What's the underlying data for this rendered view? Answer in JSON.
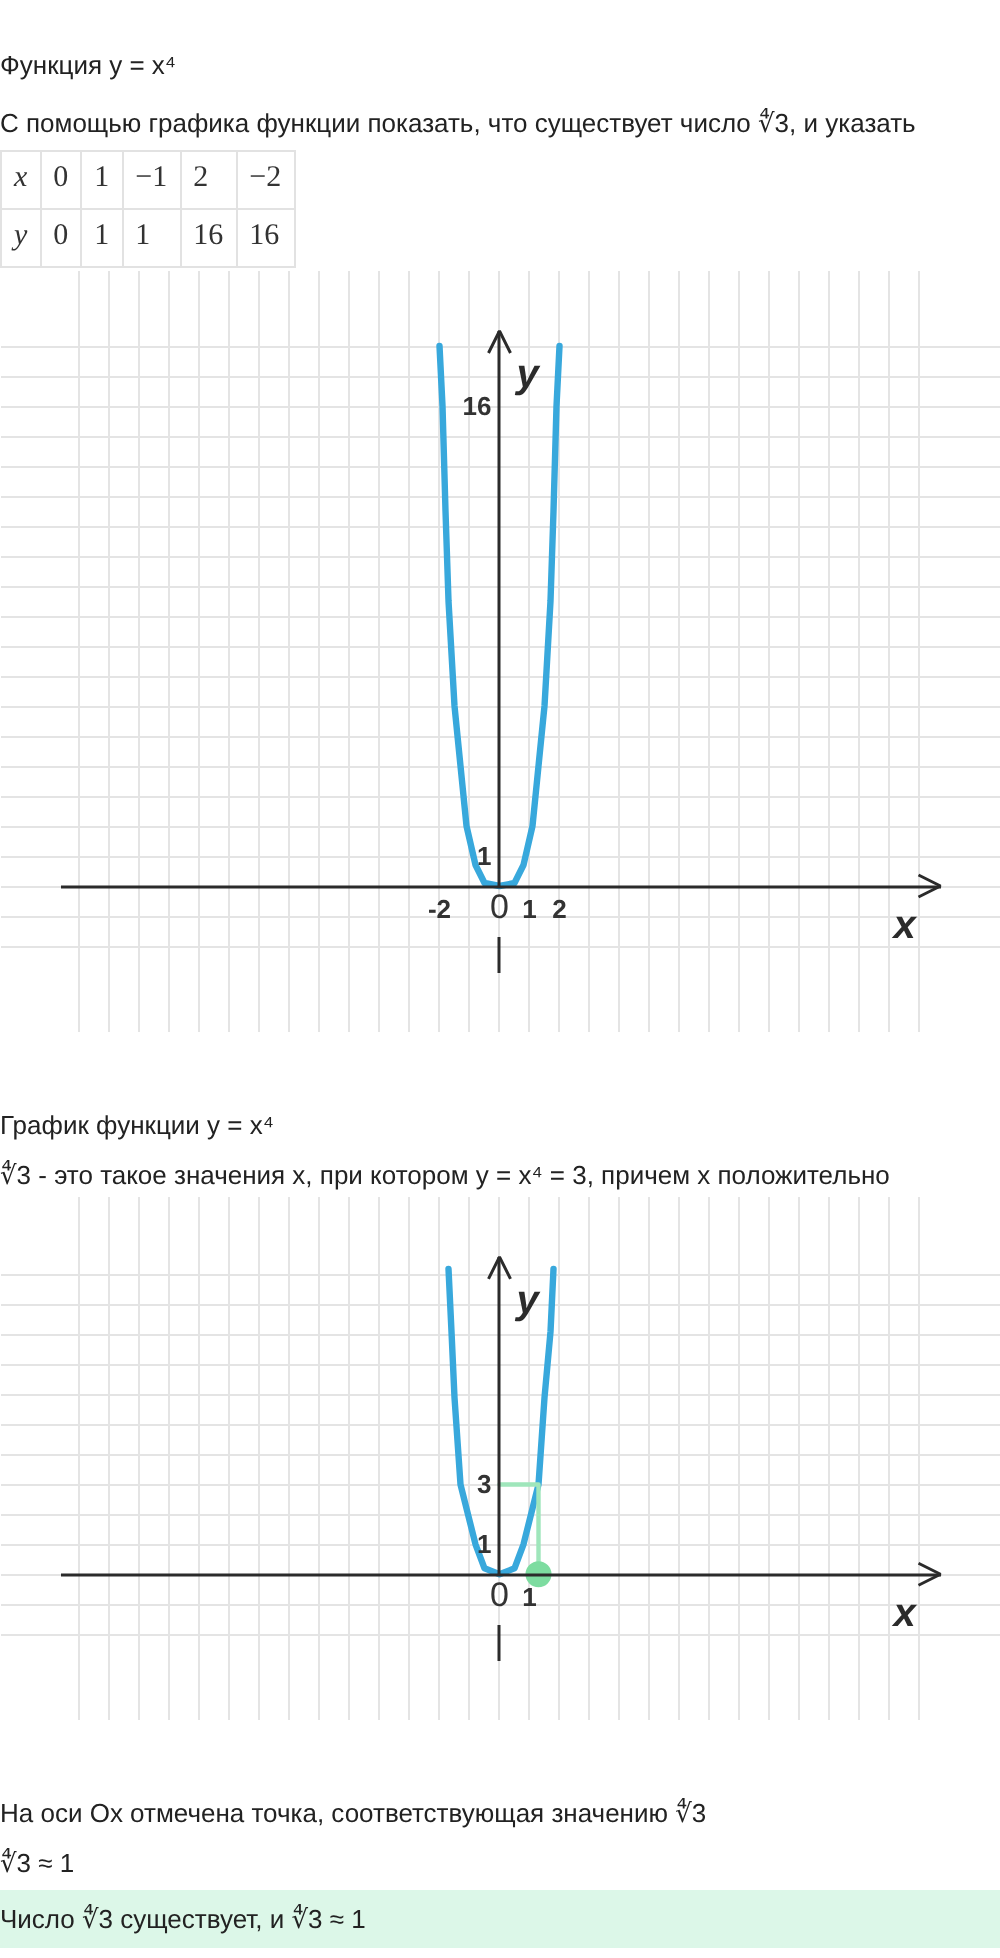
{
  "chart_data": [
    {
      "type": "other",
      "title": "Функция y = x⁴",
      "subtitle": "С помощью графика функции показать, что существует число ∜3, и указать",
      "annotations": [
        "x",
        "0",
        "1",
        "−1",
        "2",
        "−2",
        "y",
        "0",
        "1",
        "1",
        "16",
        "16"
      ]
    },
    {
      "type": "line",
      "x": [
        -2,
        -1.9,
        -1.8,
        -1.7,
        -1.5,
        -1.3,
        -1.1,
        -0.8,
        -0.5,
        0,
        0.5,
        0.8,
        1.1,
        1.3,
        1.5,
        1.7,
        1.8,
        1.9,
        2
      ],
      "values": [
        18,
        16,
        12.5,
        9.5,
        6,
        4,
        2,
        0.7,
        0.1,
        0,
        0.1,
        0.7,
        2,
        4,
        6,
        9.5,
        12.5,
        16,
        18
      ],
      "color": "#38a8dc",
      "xlim": [
        -14.6,
        14.7
      ],
      "ylim": [
        -2.9,
        18.5
      ],
      "xticks": [
        {
          "value": -14,
          "label": null
        },
        {
          "value": -13,
          "label": null
        },
        {
          "value": -12,
          "label": null
        },
        {
          "value": -11,
          "label": null
        },
        {
          "value": -10,
          "label": null
        },
        {
          "value": -9,
          "label": null
        },
        {
          "value": -8,
          "label": null
        },
        {
          "value": -7,
          "label": null
        },
        {
          "value": -6,
          "label": null
        },
        {
          "value": -5,
          "label": null
        },
        {
          "value": -4,
          "label": null
        },
        {
          "value": -3,
          "label": null
        },
        -2,
        {
          "value": -1,
          "label": null
        },
        0,
        1,
        2,
        {
          "value": 3,
          "label": null
        },
        {
          "value": 4,
          "label": null
        },
        {
          "value": 5,
          "label": null
        },
        {
          "value": 6,
          "label": null
        },
        {
          "value": 7,
          "label": null
        },
        {
          "value": 8,
          "label": null
        },
        {
          "value": 9,
          "label": null
        },
        {
          "value": 10,
          "label": null
        },
        {
          "value": 11,
          "label": null
        },
        {
          "value": 12,
          "label": null
        },
        {
          "value": 13,
          "label": null
        },
        {
          "value": 14,
          "label": null
        }
      ],
      "yticks": [
        {
          "value": -2,
          "label": null
        },
        {
          "value": -1,
          "label": null
        },
        {
          "value": 0,
          "label": null
        },
        1,
        {
          "value": 2,
          "label": null
        },
        {
          "value": 3,
          "label": null
        },
        {
          "value": 4,
          "label": null
        },
        {
          "value": 5,
          "label": null
        },
        {
          "value": 6,
          "label": null
        },
        {
          "value": 7,
          "label": null
        },
        {
          "value": 8,
          "label": null
        },
        {
          "value": 9,
          "label": null
        },
        {
          "value": 10,
          "label": null
        },
        {
          "value": 11,
          "label": null
        },
        {
          "value": 12,
          "label": null
        },
        {
          "value": 13,
          "label": null
        },
        {
          "value": 14,
          "label": null
        },
        {
          "value": 15,
          "label": null
        },
        16,
        {
          "value": 17,
          "label": null
        },
        {
          "value": 18,
          "label": null
        }
      ],
      "xlabel": "x",
      "ylabel": "y",
      "grid": true
    },
    {
      "type": "line",
      "title": "График функции y = x⁴",
      "subtitle": "∜3 - это такое значения x, при котором y = x⁴ = 3, причем x положительно",
      "series": [
        {
          "color": "#38a8dc",
          "x": [
            -1.7,
            -1.6,
            -1.5,
            -1.3,
            -0.8,
            -0.5,
            0,
            0.5,
            0.8,
            1.3,
            1.5,
            1.7,
            1.8
          ],
          "values": [
            10.2,
            8.1,
            5.9,
            3,
            1,
            0.2,
            0,
            0.2,
            1,
            3,
            5.9,
            8.1,
            10.2
          ]
        },
        {
          "type": "line",
          "color": "#9fe6bb",
          "x": [
            0,
            1.3,
            1.3
          ],
          "values": [
            3,
            3,
            0
          ]
        },
        {
          "type": "scatter",
          "marker": "circle",
          "color": "#7ddca0",
          "x": [
            1.3
          ],
          "values": [
            0
          ]
        }
      ],
      "xlim": [
        -14.6,
        14.7
      ],
      "ylim": [
        -2.9,
        10.6
      ],
      "xticks": [
        {
          "value": -14,
          "label": null
        },
        {
          "value": -13,
          "label": null
        },
        {
          "value": -12,
          "label": null
        },
        {
          "value": -11,
          "label": null
        },
        {
          "value": -10,
          "label": null
        },
        {
          "value": -9,
          "label": null
        },
        {
          "value": -8,
          "label": null
        },
        {
          "value": -7,
          "label": null
        },
        {
          "value": -6,
          "label": null
        },
        {
          "value": -5,
          "label": null
        },
        {
          "value": -4,
          "label": null
        },
        {
          "value": -3,
          "label": null
        },
        {
          "value": -2,
          "label": null
        },
        {
          "value": -1,
          "label": null
        },
        0,
        1,
        {
          "value": 2,
          "label": null
        },
        {
          "value": 3,
          "label": null
        },
        {
          "value": 4,
          "label": null
        },
        {
          "value": 5,
          "label": null
        },
        {
          "value": 6,
          "label": null
        },
        {
          "value": 7,
          "label": null
        },
        {
          "value": 8,
          "label": null
        },
        {
          "value": 9,
          "label": null
        },
        {
          "value": 10,
          "label": null
        },
        {
          "value": 11,
          "label": null
        },
        {
          "value": 12,
          "label": null
        },
        {
          "value": 13,
          "label": null
        },
        {
          "value": 14,
          "label": null
        }
      ],
      "yticks": [
        {
          "value": -2,
          "label": null
        },
        {
          "value": -1,
          "label": null
        },
        {
          "value": 0,
          "label": null
        },
        1,
        {
          "value": 2,
          "label": null
        },
        3,
        {
          "value": 4,
          "label": null
        },
        {
          "value": 5,
          "label": null
        },
        {
          "value": 6,
          "label": null
        },
        {
          "value": 7,
          "label": null
        },
        {
          "value": 8,
          "label": null
        },
        {
          "value": 9,
          "label": null
        },
        {
          "value": 10,
          "label": null
        }
      ],
      "xlabel": "x",
      "ylabel": "y",
      "grid": true,
      "annotations": [
        "На оси Ox отмечена точка, соответствующая значению ∜3",
        "∜3 ≈ 1",
        "Число ∜3 существует, и ∜3 ≈ 1"
      ]
    }
  ]
}
